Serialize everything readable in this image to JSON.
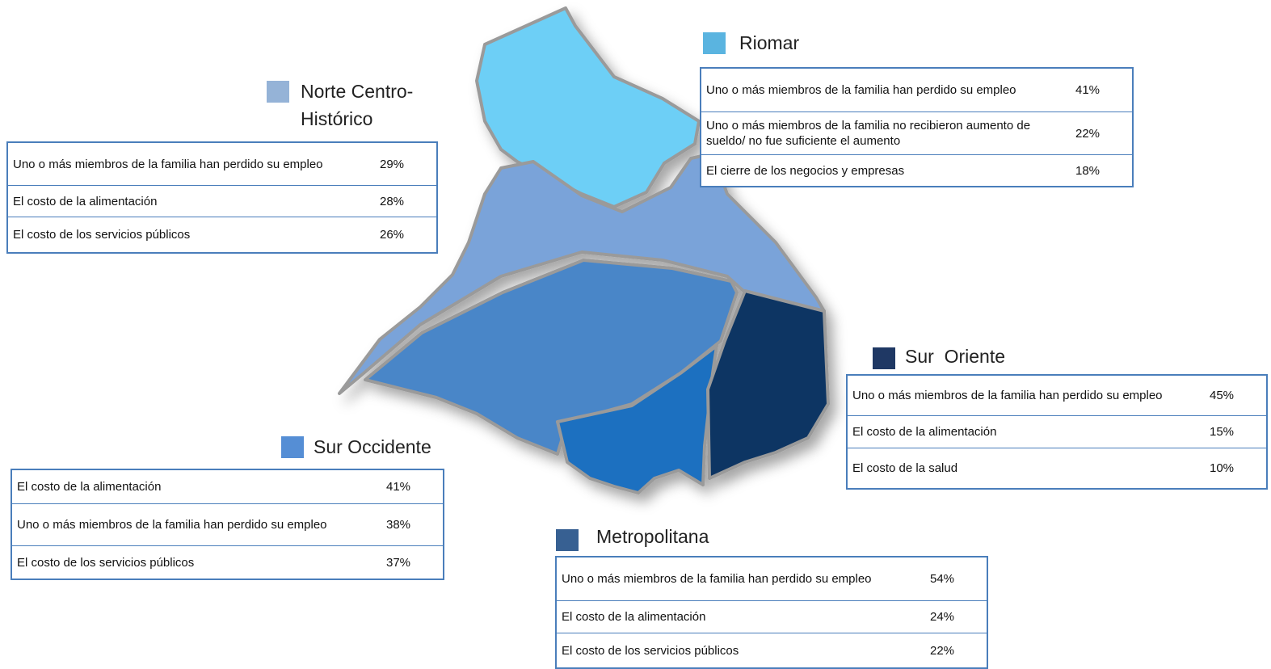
{
  "regions": [
    {
      "name": "Norte Centro-Histórico",
      "color": "#95b3d7",
      "rows": [
        [
          "Uno o más miembros de la familia han perdido su empleo",
          "29%"
        ],
        [
          "El costo de la alimentación",
          "28%"
        ],
        [
          "El costo de los servicios públicos",
          "26%"
        ]
      ]
    },
    {
      "name": "Riomar",
      "color": "#5ab4e0",
      "rows": [
        [
          "Uno o más miembros de la familia han perdido su empleo",
          "41%"
        ],
        [
          "Uno o más miembros de la familia no recibieron aumento de sueldo/ no fue suficiente el aumento",
          "22%"
        ],
        [
          "El cierre de los negocios y empresas",
          "18%"
        ]
      ]
    },
    {
      "name": "Sur  Oriente",
      "color": "#1f3864",
      "rows": [
        [
          "Uno o más miembros de la familia han perdido su empleo",
          "45%"
        ],
        [
          "El costo de la alimentación",
          "15%"
        ],
        [
          "El costo de la salud",
          "10%"
        ]
      ]
    },
    {
      "name": "Sur Occidente",
      "color": "#558ed5",
      "rows": [
        [
          "El costo de la alimentación",
          "41%"
        ],
        [
          "Uno o más miembros de la familia han perdido su empleo",
          "38%"
        ],
        [
          "El costo de los servicios públicos",
          "37%"
        ]
      ]
    },
    {
      "name": "Metropolitana",
      "color": "#376092",
      "rows": [
        [
          "Uno o más miembros de la familia han perdido su empleo",
          "54%"
        ],
        [
          "El costo de la alimentación",
          "24%"
        ],
        [
          "El costo de los servicios públicos",
          "22%"
        ]
      ]
    }
  ]
}
